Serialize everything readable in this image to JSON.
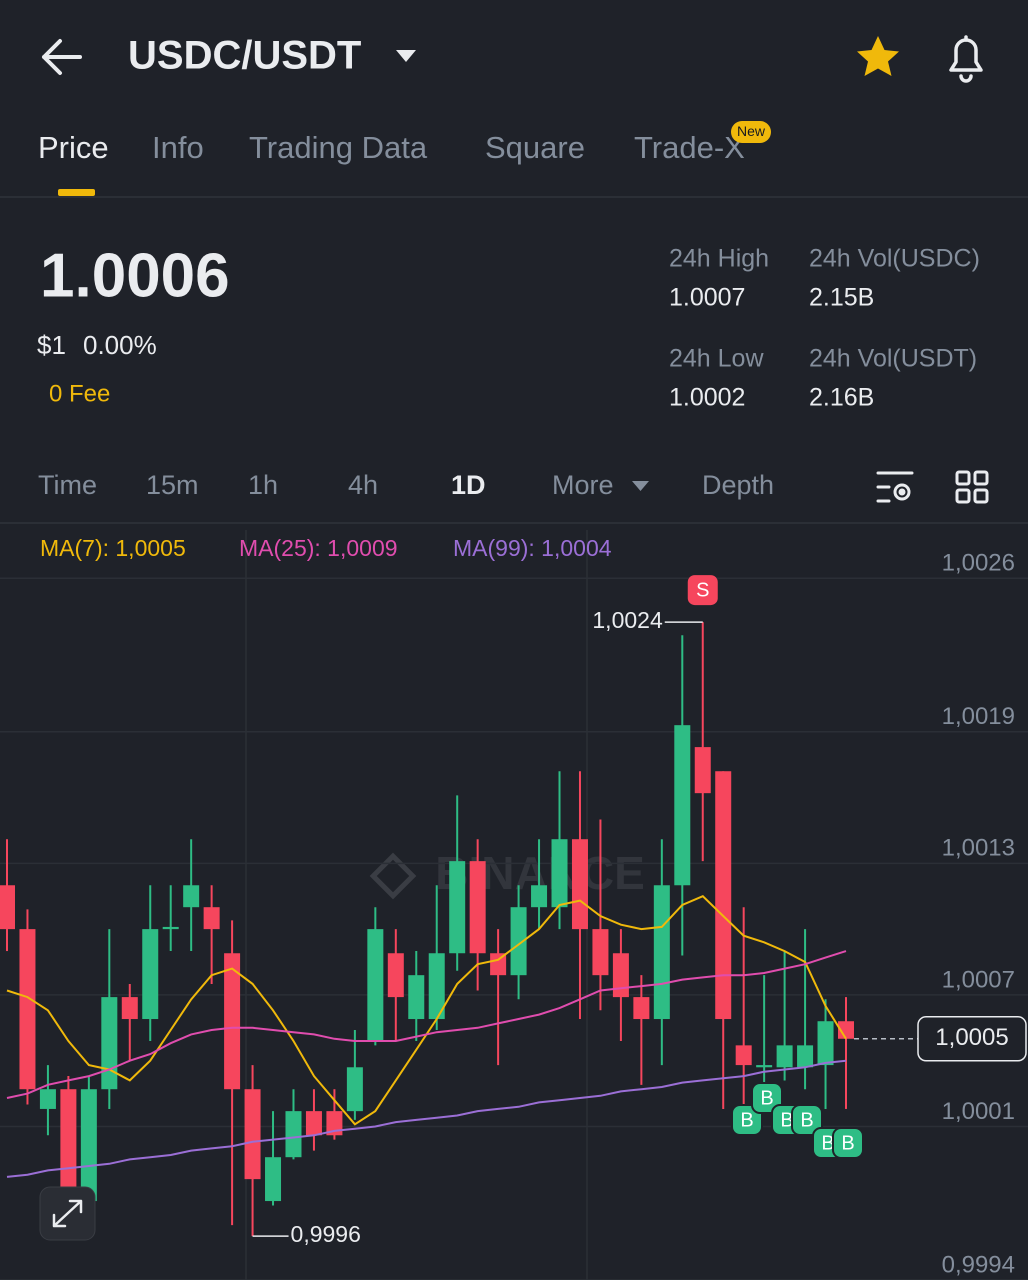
{
  "header": {
    "pair": "USDC/USDT"
  },
  "tabs": {
    "items": [
      "Price",
      "Info",
      "Trading Data",
      "Square",
      "Trade-X"
    ],
    "badge": "New"
  },
  "ticker": {
    "price": "1.0006",
    "price_usd": "$1",
    "change": "0.00%",
    "fee": "0 Fee",
    "stats": [
      {
        "label": "24h High",
        "value": "1.0007"
      },
      {
        "label": "24h Vol(USDC)",
        "value": "2.15B"
      },
      {
        "label": "24h Low",
        "value": "1.0002"
      },
      {
        "label": "24h Vol(USDT)",
        "value": "2.16B"
      }
    ]
  },
  "intervals": {
    "items": [
      "Time",
      "15m",
      "1h",
      "4h",
      "1D",
      "More",
      "Depth"
    ],
    "active": "1D"
  },
  "chart_data": {
    "type": "candlestick",
    "watermark": "BINANCE",
    "up_color": "#2ebd85",
    "down_color": "#f6465d",
    "open": [
      1.0012,
      1.001,
      1.00018,
      1.00027,
      0.99976,
      1.00027,
      1.00069,
      1.00059,
      1.001,
      1.0011,
      1.0011,
      1.00089,
      1.00027,
      0.99976,
      0.99996,
      1.00017,
      1.00017,
      1.00017,
      1.00049,
      1.00089,
      1.00059,
      1.00059,
      1.00089,
      1.00131,
      1.00089,
      1.00079,
      1.0011,
      1.0011,
      1.00141,
      1.001,
      1.00089,
      1.00069,
      1.00059,
      1.0012,
      1.00183,
      1.00172,
      1.00047,
      1.00037,
      1.00037,
      1.00037,
      1.00038,
      1.00058
    ],
    "high": [
      1.00141,
      1.00109,
      1.00038,
      1.00033,
      1.00033,
      1.001,
      1.00075,
      1.0012,
      1.0012,
      1.00141,
      1.0012,
      1.00104,
      1.00038,
      1.00017,
      1.00027,
      1.00027,
      1.00027,
      1.00054,
      1.0011,
      1.001,
      1.0009,
      1.0012,
      1.00161,
      1.00141,
      1.001,
      1.0012,
      1.00141,
      1.00172,
      1.00172,
      1.0015,
      1.001,
      1.00079,
      1.00141,
      1.00234,
      1.0024,
      1.00172,
      1.0011,
      1.00079,
      1.0009,
      1.001,
      1.00068,
      1.00069
    ],
    "low": [
      1.0009,
      1.0002,
      1.00006,
      0.99976,
      0.99974,
      1.00018,
      1.0004,
      1.00049,
      1.0009,
      1.0009,
      1.00075,
      0.99965,
      0.9996,
      0.99974,
      0.99995,
      0.99999,
      1.00004,
      1.00013,
      1.00047,
      1.00049,
      1.00049,
      1.00054,
      1.00081,
      1.00072,
      1.00038,
      1.00068,
      1.001,
      1.001,
      1.00059,
      1.00063,
      1.00049,
      1.00029,
      1.00038,
      1.00088,
      1.00131,
      1.00018,
      1.00018,
      1.00027,
      1.00031,
      1.00027,
      1.00018,
      1.00018
    ],
    "close": [
      1.001,
      1.00027,
      1.00027,
      0.99981,
      1.00027,
      1.00069,
      1.00059,
      1.001,
      1.00101,
      1.0012,
      1.001,
      1.00027,
      0.99986,
      0.99996,
      1.00017,
      1.00006,
      1.00006,
      1.00037,
      1.001,
      1.00069,
      1.00079,
      1.00089,
      1.00131,
      1.00089,
      1.00079,
      1.0011,
      1.0012,
      1.00141,
      1.001,
      1.00079,
      1.00069,
      1.00059,
      1.0012,
      1.00193,
      1.00162,
      1.00059,
      1.00038,
      1.00038,
      1.00047,
      1.00047,
      1.00058,
      1.0005
    ],
    "series": [
      {
        "name": "MA(7): 1,0005",
        "color": "#f0b90b",
        "values": [
          1.00072,
          1.00069,
          1.00063,
          1.00049,
          1.00038,
          1.00036,
          1.00031,
          1.0004,
          1.00054,
          1.00068,
          1.00079,
          1.00082,
          1.00075,
          1.00063,
          1.00049,
          1.00033,
          1.00022,
          1.00011,
          1.00017,
          1.00031,
          1.00045,
          1.00059,
          1.00075,
          1.00084,
          1.00086,
          1.00093,
          1.001,
          1.00111,
          1.00113,
          1.00106,
          1.00102,
          1.001,
          1.00101,
          1.00111,
          1.00115,
          1.00106,
          1.00097,
          1.00094,
          1.0009,
          1.00085,
          1.00065,
          1.0005
        ]
      },
      {
        "name": "MA(25): 1,0009",
        "color": "#e04dae",
        "values": [
          1.00023,
          1.00025,
          1.00029,
          1.00031,
          1.00033,
          1.00036,
          1.0004,
          1.00043,
          1.00048,
          1.00052,
          1.00054,
          1.00055,
          1.00055,
          1.00054,
          1.00053,
          1.00052,
          1.0005,
          1.00049,
          1.00049,
          1.00049,
          1.00051,
          1.00053,
          1.00054,
          1.00055,
          1.00057,
          1.00059,
          1.00061,
          1.00064,
          1.00068,
          1.00072,
          1.00073,
          1.00074,
          1.00075,
          1.00077,
          1.00078,
          1.00079,
          1.00079,
          1.0008,
          1.00082,
          1.00084,
          1.00087,
          1.0009
        ]
      },
      {
        "name": "MA(99): 1,0004",
        "color": "#9b6fd6",
        "values": [
          0.99987,
          0.99988,
          0.9999,
          0.99991,
          0.99992,
          0.99993,
          0.99995,
          0.99996,
          0.99997,
          0.99999,
          1.0,
          1.00001,
          1.00003,
          1.00004,
          1.00005,
          1.00006,
          1.00008,
          1.00009,
          1.0001,
          1.00012,
          1.00013,
          1.00014,
          1.00015,
          1.00017,
          1.00018,
          1.00019,
          1.00021,
          1.00022,
          1.00023,
          1.00024,
          1.00026,
          1.00027,
          1.00028,
          1.0003,
          1.00031,
          1.00032,
          1.00033,
          1.00035,
          1.00036,
          1.00037,
          1.00039,
          1.0004
        ]
      }
    ],
    "ylim": [
      0.9994,
      1.00282
    ],
    "yticks": [
      {
        "value": 1.0026,
        "label": "1,0026"
      },
      {
        "value": 1.0019,
        "label": "1,0019"
      },
      {
        "value": 1.0013,
        "label": "1,0013"
      },
      {
        "value": 1.0007,
        "label": "1,0007"
      },
      {
        "value": 1.0001,
        "label": "1,0001"
      },
      {
        "value": 0.9994,
        "label": "0,9994"
      }
    ],
    "grid": true,
    "high_label": {
      "value": 1.0024,
      "label": "1,0024"
    },
    "low_label": {
      "value": 0.9996,
      "label": "0,9996"
    },
    "last_price": {
      "value": 1.0005,
      "label": "1,0005"
    },
    "trade_markers": {
      "sell": "S",
      "buy": [
        "B",
        "B",
        "B",
        "B",
        "B",
        "B"
      ]
    }
  }
}
